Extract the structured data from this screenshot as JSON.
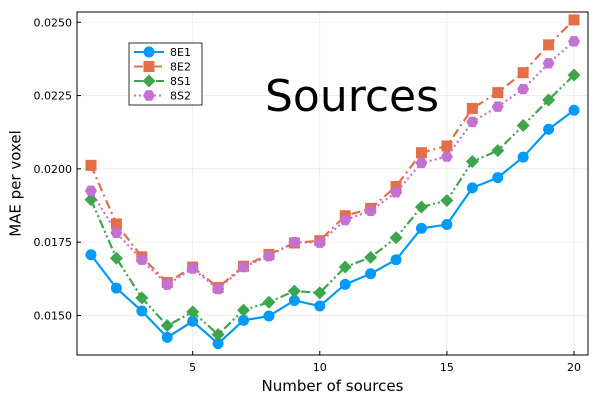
{
  "chart_data": {
    "type": "line",
    "xlabel": "Number of sources",
    "ylabel": "MAE per voxel",
    "annotation": "Sources",
    "xlim": [
      0.45,
      20.55
    ],
    "ylim": [
      0.01365,
      0.02535
    ],
    "xticks": [
      5,
      10,
      15,
      20
    ],
    "xtick_labels": [
      "5",
      "10",
      "15",
      "20"
    ],
    "yticks": [
      0.015,
      0.0175,
      0.02,
      0.0225,
      0.025
    ],
    "ytick_labels": [
      "0.0150",
      "0.0175",
      "0.0200",
      "0.0225",
      "0.0250"
    ],
    "grid": true,
    "legend_position": "top-left",
    "x": [
      1,
      2,
      3,
      4,
      5,
      6,
      7,
      8,
      9,
      10,
      11,
      12,
      13,
      14,
      15,
      16,
      17,
      18,
      19,
      20
    ],
    "series": [
      {
        "name": "8E1",
        "color": "#009AFA",
        "marker": "circle",
        "dash": "solid",
        "values": [
          0.01707,
          0.01593,
          0.01515,
          0.01425,
          0.0148,
          0.01404,
          0.01483,
          0.01498,
          0.01551,
          0.01532,
          0.01606,
          0.01642,
          0.0169,
          0.01797,
          0.0181,
          0.01935,
          0.0197,
          0.0204,
          0.02135,
          0.022
        ]
      },
      {
        "name": "8E2",
        "color": "#E36F47",
        "marker": "square",
        "dash": "dashdot",
        "values": [
          0.02012,
          0.01812,
          0.017,
          0.01612,
          0.01665,
          0.01595,
          0.01668,
          0.01708,
          0.01747,
          0.01755,
          0.0184,
          0.01865,
          0.0194,
          0.02055,
          0.02078,
          0.02206,
          0.0226,
          0.02328,
          0.02423,
          0.02508
        ]
      },
      {
        "name": "8S1",
        "color": "#3EA44E",
        "marker": "diamond",
        "dash": "dashdotdot",
        "values": [
          0.01895,
          0.01695,
          0.0156,
          0.01465,
          0.01512,
          0.01435,
          0.01518,
          0.01545,
          0.01583,
          0.01577,
          0.01665,
          0.01698,
          0.01765,
          0.0187,
          0.01892,
          0.02025,
          0.02062,
          0.02148,
          0.02235,
          0.0232
        ]
      },
      {
        "name": "8S2",
        "color": "#C371D2",
        "marker": "hexagon",
        "dash": "dot",
        "values": [
          0.01925,
          0.01782,
          0.0169,
          0.01605,
          0.0166,
          0.0159,
          0.01665,
          0.01702,
          0.0175,
          0.01748,
          0.01825,
          0.01857,
          0.0192,
          0.0202,
          0.02042,
          0.0216,
          0.02212,
          0.02272,
          0.0236,
          0.02435
        ]
      }
    ]
  }
}
